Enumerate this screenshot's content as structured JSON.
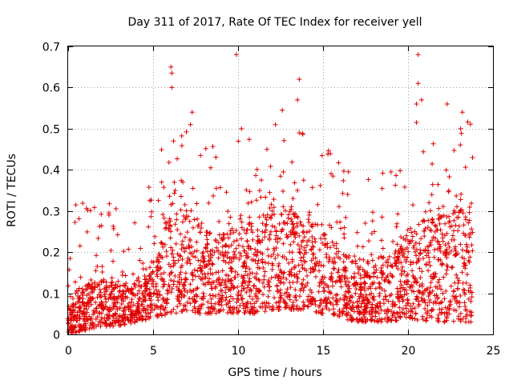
{
  "chart_data": {
    "type": "scatter",
    "title": "Day 311 of 2017, Rate Of TEC Index for receiver yell",
    "xlabel": "GPS time / hours",
    "ylabel": "ROTI / TECUs",
    "xlim": [
      0,
      25
    ],
    "ylim": [
      0,
      0.7
    ],
    "x_ticks": [
      0,
      5,
      10,
      15,
      20,
      25
    ],
    "x_tick_labels": [
      "0",
      "5",
      "10",
      "15",
      "20",
      "25"
    ],
    "y_ticks": [
      0,
      0.1,
      0.2,
      0.3,
      0.4,
      0.5,
      0.6,
      0.7
    ],
    "y_tick_labels": [
      "0",
      "0.1",
      "0.2",
      "0.3",
      "0.4",
      "0.5",
      "0.6",
      "0.7"
    ],
    "grid": true,
    "marker": "+",
    "color": "#e00000",
    "series": [
      {
        "name": "ROTI",
        "envelope": {
          "description": "approximate typical range of the dense point cloud per hour band",
          "x": [
            0,
            1,
            2,
            3,
            4,
            5,
            6,
            7,
            8,
            9,
            10,
            11,
            12,
            13,
            14,
            15,
            16,
            17,
            18,
            19,
            20,
            21,
            22,
            23,
            24
          ],
          "low": [
            0.0,
            0.01,
            0.02,
            0.02,
            0.03,
            0.04,
            0.05,
            0.05,
            0.05,
            0.05,
            0.05,
            0.05,
            0.06,
            0.06,
            0.06,
            0.05,
            0.04,
            0.03,
            0.03,
            0.03,
            0.04,
            0.03,
            0.03,
            0.03,
            0.03
          ],
          "high": [
            0.08,
            0.12,
            0.13,
            0.12,
            0.13,
            0.16,
            0.3,
            0.3,
            0.25,
            0.24,
            0.25,
            0.28,
            0.3,
            0.29,
            0.3,
            0.25,
            0.2,
            0.17,
            0.18,
            0.19,
            0.24,
            0.28,
            0.28,
            0.3,
            0.32
          ]
        },
        "notable_points": [
          {
            "x": 0.7,
            "y": 0.215
          },
          {
            "x": 2.4,
            "y": 0.295
          },
          {
            "x": 2.4,
            "y": 0.29
          },
          {
            "x": 6.05,
            "y": 0.65
          },
          {
            "x": 6.1,
            "y": 0.635
          },
          {
            "x": 6.1,
            "y": 0.6
          },
          {
            "x": 6.2,
            "y": 0.47
          },
          {
            "x": 7.3,
            "y": 0.54
          },
          {
            "x": 7.2,
            "y": 0.51
          },
          {
            "x": 9.9,
            "y": 0.68
          },
          {
            "x": 10.2,
            "y": 0.5
          },
          {
            "x": 12.2,
            "y": 0.51
          },
          {
            "x": 12.6,
            "y": 0.545
          },
          {
            "x": 13.6,
            "y": 0.62
          },
          {
            "x": 13.5,
            "y": 0.57
          },
          {
            "x": 13.6,
            "y": 0.49
          },
          {
            "x": 11.7,
            "y": 0.45
          },
          {
            "x": 16.5,
            "y": 0.395
          },
          {
            "x": 19.0,
            "y": 0.395
          },
          {
            "x": 20.6,
            "y": 0.68
          },
          {
            "x": 20.6,
            "y": 0.61
          },
          {
            "x": 20.5,
            "y": 0.56
          },
          {
            "x": 20.5,
            "y": 0.515
          },
          {
            "x": 20.8,
            "y": 0.57
          },
          {
            "x": 22.3,
            "y": 0.56
          },
          {
            "x": 23.2,
            "y": 0.54
          },
          {
            "x": 23.1,
            "y": 0.5
          },
          {
            "x": 23.8,
            "y": 0.43
          }
        ]
      }
    ]
  }
}
